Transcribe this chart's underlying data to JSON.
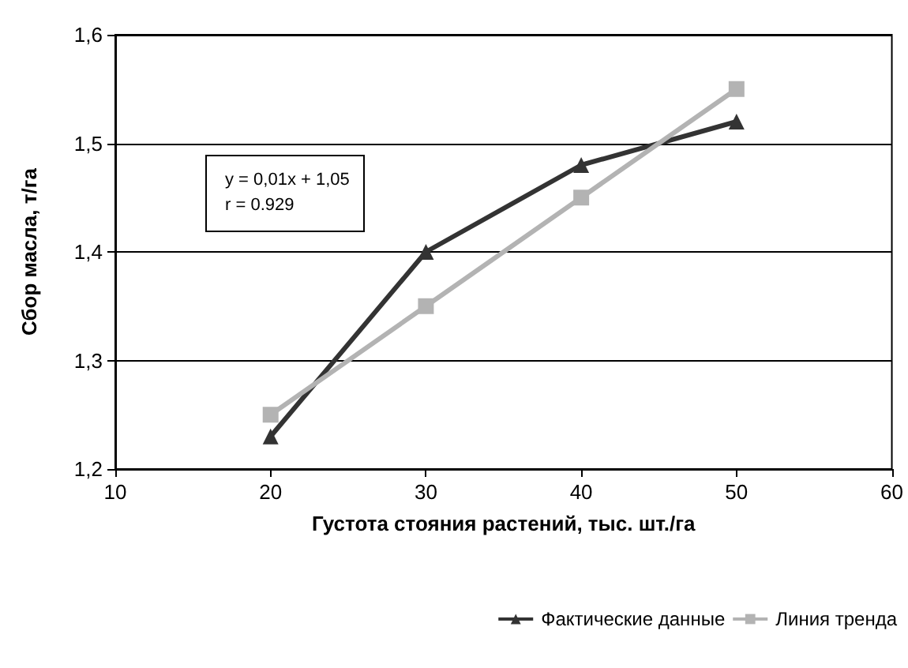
{
  "chart_data": {
    "type": "line",
    "xlabel": "Густота стояния растений, тыс. шт./га",
    "ylabel": "Сбор масла, т/га",
    "x": [
      20,
      30,
      40,
      50
    ],
    "series": [
      {
        "name": "Фактические данные",
        "color": "#333333",
        "marker": "triangle",
        "values": [
          1.23,
          1.4,
          1.48,
          1.52
        ]
      },
      {
        "name": "Линия тренда",
        "color": "#b3b3b3",
        "marker": "square",
        "values": [
          1.25,
          1.35,
          1.45,
          1.55
        ]
      }
    ],
    "xlim": [
      10,
      60
    ],
    "xticks": [
      10,
      20,
      30,
      40,
      50,
      60
    ],
    "ylim": [
      1.2,
      1.6
    ],
    "yticks": [
      {
        "value": 1.2,
        "label": "1,2"
      },
      {
        "value": 1.3,
        "label": "1,3"
      },
      {
        "value": 1.4,
        "label": "1,4"
      },
      {
        "value": 1.5,
        "label": "1,5"
      },
      {
        "value": 1.6,
        "label": "1,6"
      }
    ],
    "annotations": [
      "y = 0,01x + 1,05",
      "r = 0.929"
    ],
    "grid": "y",
    "legend": "bottom right"
  }
}
